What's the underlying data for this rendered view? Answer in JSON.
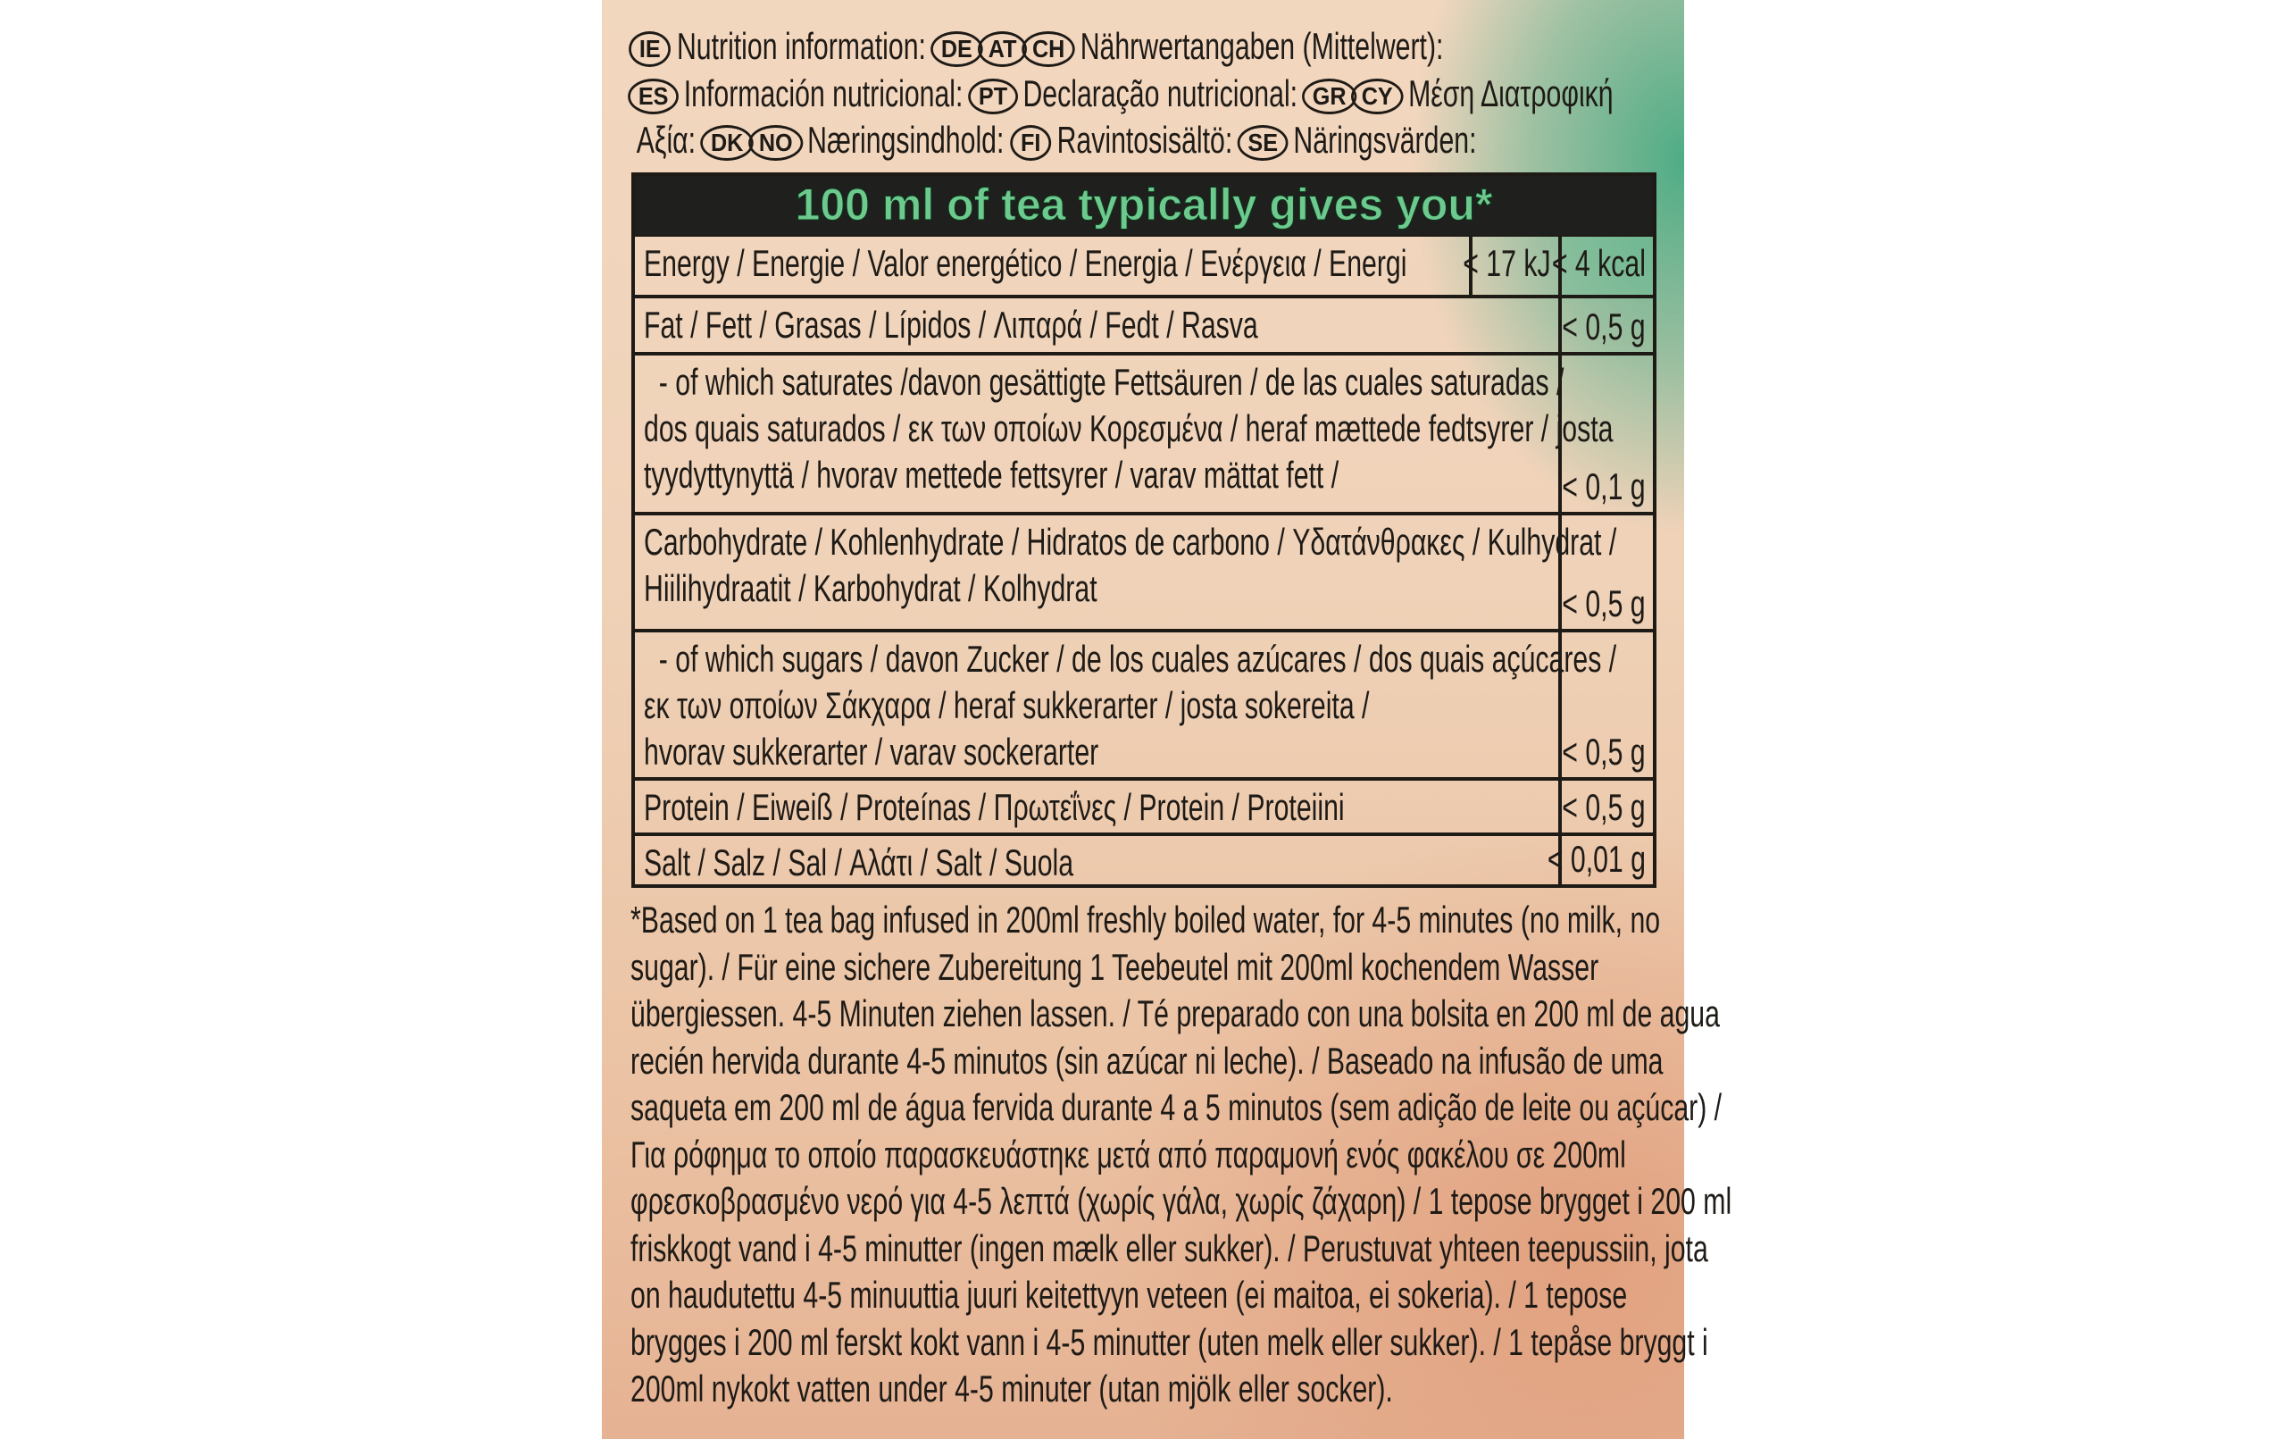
{
  "header": {
    "line1": [
      {
        "badge": "IE"
      },
      {
        "text": "Nutrition information:"
      },
      {
        "badge": "DE"
      },
      {
        "badge": "AT"
      },
      {
        "badge": "CH"
      },
      {
        "text": "Nährwertangaben (Mittelwert):"
      }
    ],
    "line2": [
      {
        "badge": "ES"
      },
      {
        "text": "Información nutricional:"
      },
      {
        "badge": "PT"
      },
      {
        "text": "Declaração nutricional:"
      },
      {
        "badge": "GR"
      },
      {
        "badge": "CY"
      },
      {
        "text": "Μέση Διατροφική"
      }
    ],
    "line3": [
      {
        "text": "Αξία:"
      },
      {
        "badge": "DK"
      },
      {
        "badge": "NO"
      },
      {
        "text": "Næringsindhold:"
      },
      {
        "badge": "FI"
      },
      {
        "text": "Ravintosisältö:"
      },
      {
        "badge": "SE"
      },
      {
        "text": "Näringsvärden:"
      }
    ]
  },
  "table": {
    "title": "100 ml of tea typically gives you*",
    "rows": [
      {
        "label": [
          "Energy / Energie / Valor energético / Energia / Ενέργεια / Energi"
        ],
        "kj": "< 17 kJ",
        "value": "< 4 kcal"
      },
      {
        "label": [
          "Fat / Fett / Grasas / Lípidos / Λιπαρά / Fedt / Rasva"
        ],
        "value": "< 0,5 g"
      },
      {
        "label": [
          "  - of which saturates /davon gesättigte Fettsäuren / de las cuales saturadas /",
          "dos quais saturados / εκ των οποίων Κορεσμένα / heraf mættede fedtsyrer / josta",
          "tyydyttynyttä / hvorav mettede fettsyrer / varav mättat fett /"
        ],
        "value": "< 0,1 g"
      },
      {
        "label": [
          "Carbohydrate / Kohlenhydrate / Hidratos de carbono / Υδατάνθρακες / Kulhydrat /",
          "Hiilihydraatit / Karbohydrat / Kolhydrat"
        ],
        "value": "< 0,5 g"
      },
      {
        "label": [
          "  - of which sugars / davon Zucker / de los cuales azúcares / dos quais açúcares /",
          "εκ των οποίων Σάκχαρα / heraf sukkerarter / josta sokereita /",
          "hvorav sukkerarter / varav sockerarter"
        ],
        "value": "< 0,5 g"
      },
      {
        "label": [
          "Protein / Eiweiß / Proteínas / Πρωτεΐνες / Protein / Proteiini"
        ],
        "value": "< 0,5 g"
      },
      {
        "label": [
          "Salt / Salz / Sal / Αλάτι / Salt / Suola"
        ],
        "value": "< 0,01 g"
      }
    ]
  },
  "footnote": [
    "*Based on 1 tea bag infused in 200ml freshly boiled water, for 4-5 minutes (no milk, no",
    "sugar). / Für eine sichere Zubereitung 1 Teebeutel mit 200ml kochendem Wasser",
    "übergiessen. 4-5 Minuten ziehen lassen. / Té preparado con una bolsita en 200 ml de agua",
    "recién hervida durante 4-5 minutos (sin azúcar ni leche). / Baseado na infusão de uma",
    "saqueta em 200 ml de água fervida durante 4 a 5 minutos (sem adição de leite ou açúcar) /",
    "Για ρόφημα το οποίο παρασκευάστηκε μετά από παραμονή ενός φακέλου σε 200ml",
    "φρεσκοβρασμένο νερό για 4-5 λεπτά (χωρίς γάλα, χωρίς ζάχαρη) / 1 tepose brygget i 200 ml",
    "friskkogt vand i 4-5 minutter (ingen mælk eller sukker). / Perustuvat yhteen teepussiin, jota",
    "on haudutettu 4-5 minuuttia juuri keitettyyn veteen (ei maitoa, ei sokeria). / 1 tepose",
    "brygges i 200 ml ferskt kokt vann i 4-5 minutter (uten melk eller sukker). / 1 tepåse bryggt i",
    "200ml nykokt vatten under 4-5 minuter (utan mjölk eller socker)."
  ],
  "colors": {
    "title_green": "#6dc98e",
    "header_bg": "#1f1f1d",
    "text": "#1e1a16"
  }
}
